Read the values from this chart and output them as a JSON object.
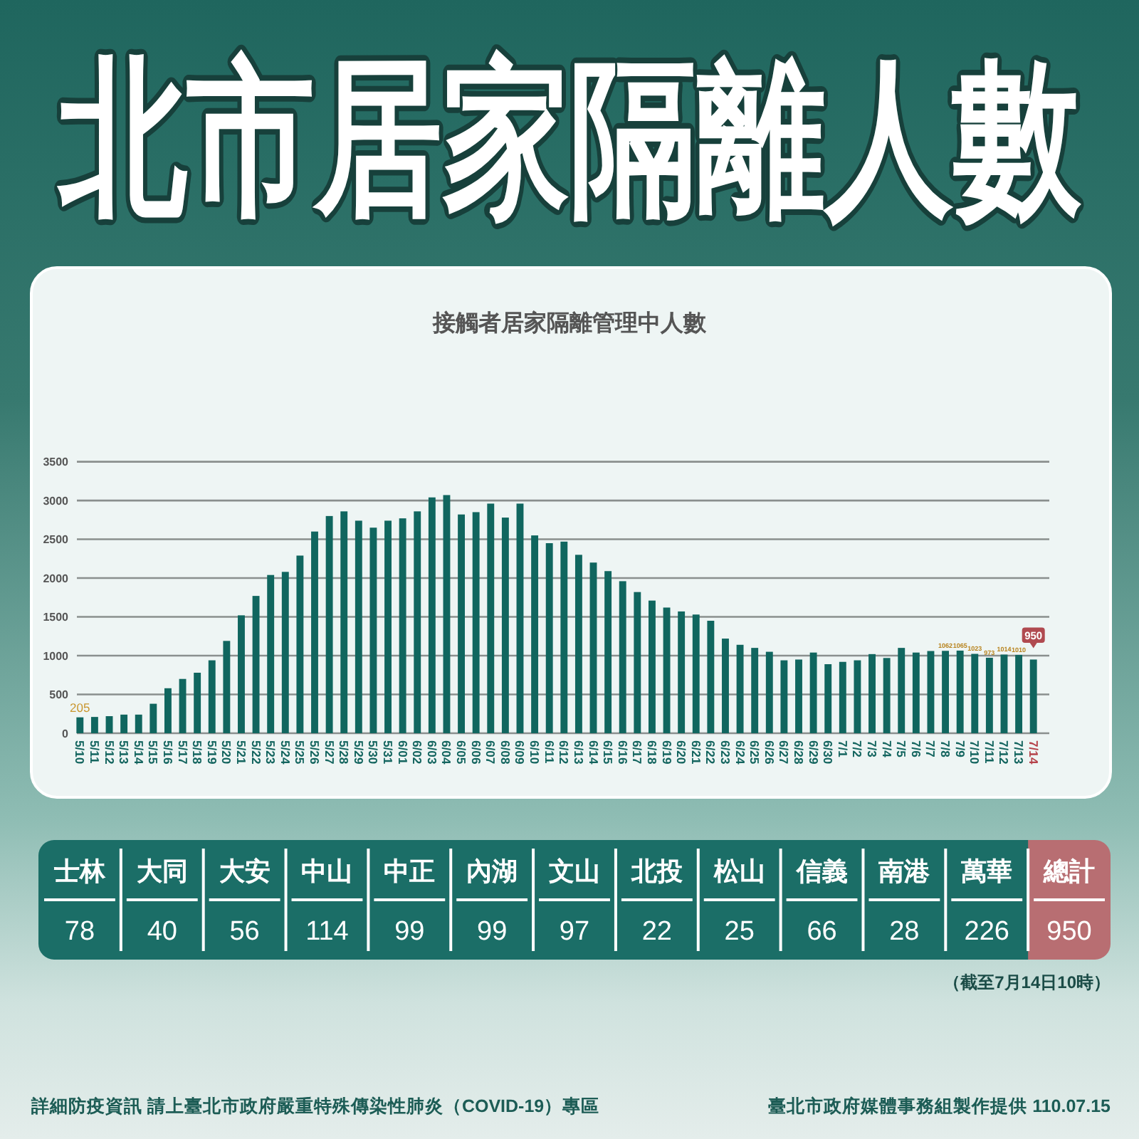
{
  "chart_data": [
    {
      "type": "bar",
      "title": "北市居家隔離人數",
      "subtitle": "接觸者居家隔離管理中人數",
      "categories": [
        "5/10",
        "5/11",
        "5/12",
        "5/13",
        "5/14",
        "5/15",
        "5/16",
        "5/17",
        "5/18",
        "5/19",
        "5/20",
        "5/21",
        "5/22",
        "5/23",
        "5/24",
        "5/25",
        "5/26",
        "5/27",
        "5/28",
        "5/29",
        "5/30",
        "5/31",
        "6/01",
        "6/02",
        "6/03",
        "6/04",
        "6/05",
        "6/06",
        "6/07",
        "6/08",
        "6/09",
        "6/10",
        "6/11",
        "6/12",
        "6/13",
        "6/14",
        "6/15",
        "6/16",
        "6/17",
        "6/18",
        "6/19",
        "6/20",
        "6/21",
        "6/22",
        "6/23",
        "6/24",
        "6/25",
        "6/26",
        "6/27",
        "6/28",
        "6/29",
        "6/30",
        "7/1",
        "7/2",
        "7/3",
        "7/4",
        "7/5",
        "7/6",
        "7/7",
        "7/8",
        "7/9",
        "7/10",
        "7/11",
        "7/12",
        "7/13",
        "7/14"
      ],
      "values": [
        205,
        210,
        220,
        240,
        240,
        380,
        580,
        700,
        780,
        940,
        1190,
        1520,
        1770,
        2040,
        2080,
        2290,
        2600,
        2800,
        2860,
        2740,
        2650,
        2740,
        2770,
        2860,
        3040,
        3070,
        2820,
        2850,
        2960,
        2780,
        2960,
        2550,
        2450,
        2470,
        2300,
        2200,
        2090,
        1960,
        1820,
        1710,
        1620,
        1570,
        1530,
        1450,
        1220,
        1140,
        1100,
        1050,
        940,
        950,
        1040,
        890,
        920,
        940,
        1020,
        970,
        1100,
        1040,
        1060,
        1062,
        1065,
        1023,
        973,
        1014,
        1010,
        950
      ],
      "value_labels": [
        "205",
        null,
        null,
        null,
        null,
        null,
        null,
        null,
        null,
        null,
        null,
        null,
        null,
        null,
        null,
        null,
        null,
        null,
        null,
        null,
        null,
        null,
        null,
        null,
        null,
        null,
        null,
        null,
        null,
        null,
        null,
        null,
        null,
        null,
        null,
        null,
        null,
        null,
        null,
        null,
        null,
        null,
        null,
        null,
        null,
        null,
        null,
        null,
        null,
        null,
        null,
        null,
        null,
        null,
        null,
        null,
        null,
        null,
        null,
        "1062",
        "1065",
        "1023",
        "973",
        "1014",
        "1010",
        "950"
      ],
      "color": "#10665f",
      "ylim": [
        0,
        3500
      ],
      "yticks": [
        0,
        500,
        1000,
        1500,
        2000,
        2500,
        3000,
        3500
      ],
      "grid": "y"
    },
    {
      "type": "other",
      "categories": [
        "士林",
        "大同",
        "大安",
        "中山",
        "中正",
        "內湖",
        "文山",
        "北投",
        "松山",
        "信義",
        "南港",
        "萬華",
        "總計"
      ],
      "values": [
        78,
        40,
        56,
        114,
        99,
        99,
        97,
        22,
        25,
        66,
        28,
        226,
        950
      ],
      "colors": [
        "#1b6e67",
        "#1b6e67",
        "#1b6e67",
        "#1b6e67",
        "#1b6e67",
        "#1b6e67",
        "#1b6e67",
        "#1b6e67",
        "#1b6e67",
        "#1b6e67",
        "#1b6e67",
        "#1b6e67",
        "#b86e72"
      ],
      "data_labels": true,
      "annotations": [
        "（截至7月14日10時）",
        "詳細防疫資訊 請上臺北市政府嚴重特殊傳染性肺炎（COVID-19）專區",
        "臺北市政府媒體事務組製作提供 110.07.15"
      ]
    }
  ]
}
